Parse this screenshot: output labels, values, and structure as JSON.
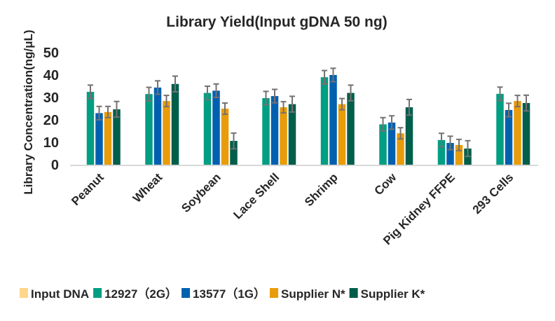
{
  "chart_data": {
    "type": "bar",
    "title": "Library Yield(Input gDNA 50 ng)",
    "xlabel": "",
    "ylabel": "Library Concentration(ng/μL)",
    "ylim": [
      0,
      50
    ],
    "yticks": [
      "0",
      "10",
      "20",
      "30",
      "40",
      "50"
    ],
    "grid": false,
    "legend_position": "bottom",
    "categories": [
      "Peanut",
      "Wheat",
      "Soybean",
      "Lace Shell",
      "Shrimp",
      "Cow",
      "Pig Kidney FFPE",
      "293  Cells"
    ],
    "series": [
      {
        "name": "Input DNA",
        "color": "#FDD68A",
        "values": [
          0,
          0,
          0,
          0,
          0,
          0,
          0,
          0
        ],
        "errors": [
          0,
          0,
          0,
          0,
          0,
          0,
          0,
          0
        ]
      },
      {
        "name": "12927（2G）",
        "color": "#009E82",
        "values": [
          32.5,
          31.5,
          32,
          29.7,
          39,
          18,
          11,
          31.6
        ],
        "errors": [
          3,
          3,
          3,
          3,
          3,
          3,
          3,
          3
        ]
      },
      {
        "name": "13577（1G）",
        "color": "#0060B0",
        "values": [
          23,
          34.4,
          33,
          30.6,
          40,
          18.8,
          9.7,
          24.4
        ],
        "errors": [
          3,
          3,
          3,
          3,
          3,
          3,
          3,
          3
        ]
      },
      {
        "name": "Supplier N*",
        "color": "#E89C0A",
        "values": [
          23.5,
          28.4,
          25,
          25.6,
          27,
          14,
          8.8,
          28.4
        ],
        "errors": [
          2.5,
          2.5,
          2.5,
          2.5,
          2.5,
          2.5,
          2.5,
          2.5
        ]
      },
      {
        "name": "Supplier K*",
        "color": "#005E4A",
        "values": [
          24.7,
          36,
          10.6,
          27,
          32,
          25.6,
          7.2,
          27.5
        ],
        "errors": [
          3.5,
          3.5,
          3.5,
          3.5,
          3.5,
          3.5,
          3.5,
          3.5
        ]
      }
    ]
  }
}
